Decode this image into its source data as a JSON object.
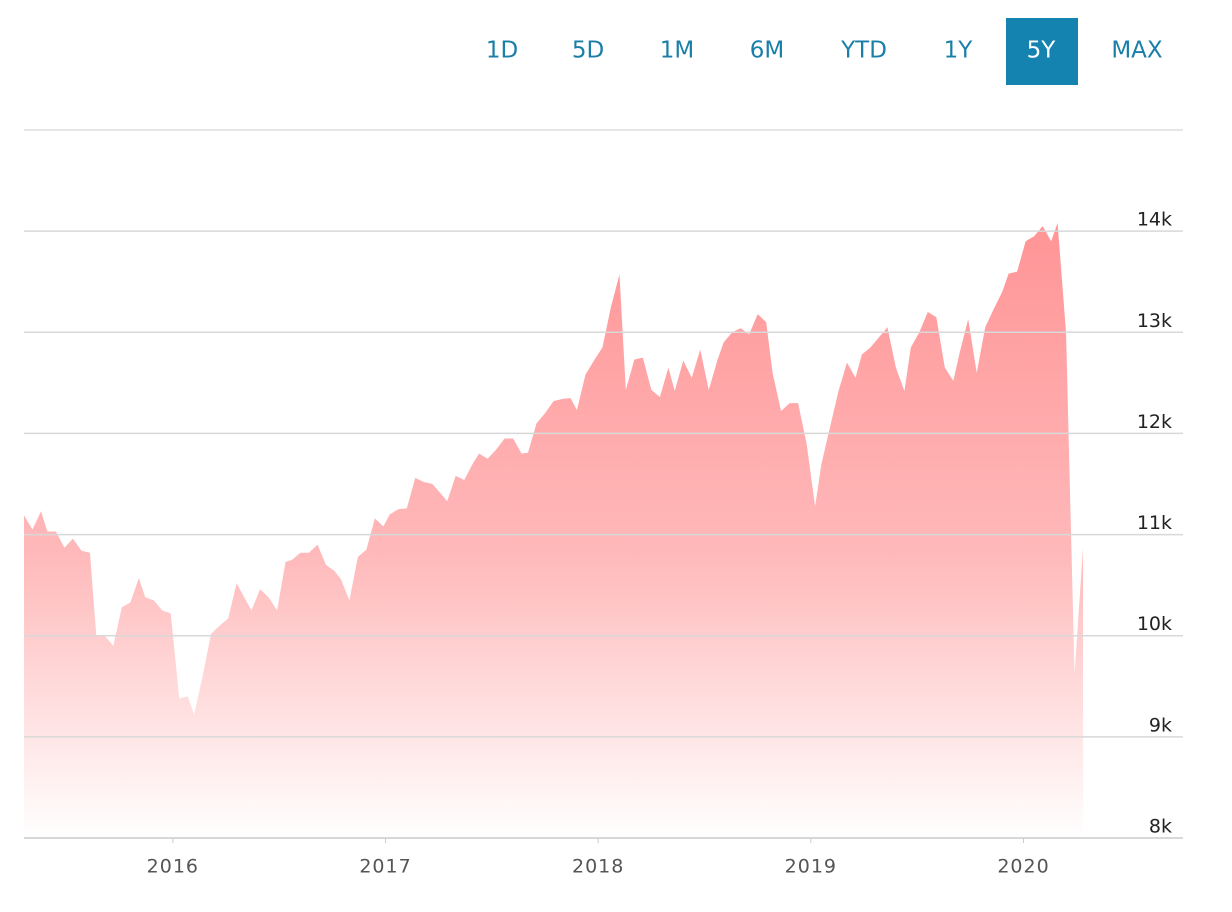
{
  "range_buttons": [
    "1D",
    "5D",
    "1M",
    "6M",
    "YTD",
    "1Y",
    "5Y",
    "MAX"
  ],
  "selected_range": 6,
  "chart_data": {
    "type": "area",
    "color": "#ff8a8c",
    "x": [
      2015.3,
      2015.34,
      2015.38,
      2015.41,
      2015.45,
      2015.49,
      2015.53,
      2015.57,
      2015.61,
      2015.64,
      2015.68,
      2015.72,
      2015.76,
      2015.8,
      2015.84,
      2015.87,
      2015.91,
      2015.95,
      2015.99,
      2016.03,
      2016.07,
      2016.1,
      2016.14,
      2016.18,
      2016.22,
      2016.26,
      2016.3,
      2016.33,
      2016.37,
      2016.41,
      2016.45,
      2016.49,
      2016.53,
      2016.56,
      2016.6,
      2016.64,
      2016.68,
      2016.72,
      2016.76,
      2016.79,
      2016.83,
      2016.87,
      2016.91,
      2016.95,
      2016.99,
      2017.02,
      2017.06,
      2017.1,
      2017.14,
      2017.18,
      2017.22,
      2017.25,
      2017.29,
      2017.33,
      2017.37,
      2017.41,
      2017.44,
      2017.48,
      2017.52,
      2017.56,
      2017.6,
      2017.64,
      2017.67,
      2017.71,
      2017.75,
      2017.79,
      2017.83,
      2017.87,
      2017.9,
      2017.94,
      2017.98,
      2018.02,
      2018.06,
      2018.1,
      2018.13,
      2018.17,
      2018.21,
      2018.25,
      2018.29,
      2018.33,
      2018.36,
      2018.4,
      2018.44,
      2018.48,
      2018.52,
      2018.56,
      2018.59,
      2018.63,
      2018.67,
      2018.71,
      2018.75,
      2018.79,
      2018.82,
      2018.86,
      2018.9,
      2018.94,
      2018.98,
      2019.02,
      2019.05,
      2019.09,
      2019.13,
      2019.17,
      2019.21,
      2019.24,
      2019.28,
      2019.32,
      2019.36,
      2019.4,
      2019.44,
      2019.47,
      2019.51,
      2019.55,
      2019.59,
      2019.63,
      2019.67,
      2019.7,
      2019.74,
      2019.78,
      2019.82,
      2019.86,
      2019.9,
      2019.93,
      2019.97,
      2020.01,
      2020.05,
      2020.09,
      2020.13,
      2020.16,
      2020.2,
      2020.24,
      2020.28
    ],
    "values": [
      11190,
      11050,
      11230,
      11030,
      11030,
      10870,
      10960,
      10840,
      10820,
      10000,
      10000,
      9900,
      10280,
      10330,
      10570,
      10380,
      10350,
      10250,
      10220,
      9380,
      9400,
      9220,
      9600,
      10020,
      10100,
      10170,
      10520,
      10400,
      10250,
      10460,
      10380,
      10250,
      10730,
      10750,
      10820,
      10820,
      10900,
      10700,
      10640,
      10560,
      10350,
      10780,
      10850,
      11160,
      11080,
      11200,
      11250,
      11260,
      11560,
      11520,
      11500,
      11430,
      11330,
      11580,
      11540,
      11700,
      11800,
      11750,
      11840,
      11950,
      11950,
      11800,
      11810,
      12100,
      12200,
      12320,
      12340,
      12350,
      12230,
      12580,
      12720,
      12850,
      13250,
      13570,
      12430,
      12730,
      12750,
      12430,
      12360,
      12650,
      12420,
      12720,
      12550,
      12830,
      12430,
      12720,
      12900,
      13000,
      13040,
      12980,
      13180,
      13100,
      12600,
      12220,
      12300,
      12300,
      11900,
      11280,
      11700,
      12060,
      12420,
      12700,
      12550,
      12780,
      12850,
      12950,
      13050,
      12650,
      12420,
      12850,
      13000,
      13200,
      13150,
      12650,
      12520,
      12800,
      13130,
      12600,
      13050,
      13230,
      13400,
      13580,
      13600,
      13900,
      13950,
      14050,
      13900,
      14080,
      13000,
      9620,
      10870
    ],
    "xlim": [
      2015.3,
      2020.75
    ],
    "xticks": [
      2016,
      2017,
      2018,
      2019,
      2020
    ],
    "ylim": [
      8000,
      15000
    ],
    "yticks": [
      {
        "value": 8000,
        "label": "8k"
      },
      {
        "value": 9000,
        "label": "9k"
      },
      {
        "value": 10000,
        "label": "10k"
      },
      {
        "value": 11000,
        "label": "11k"
      },
      {
        "value": 12000,
        "label": "12k"
      },
      {
        "value": 13000,
        "label": "13k"
      },
      {
        "value": 14000,
        "label": "14k"
      }
    ],
    "grid": true
  }
}
